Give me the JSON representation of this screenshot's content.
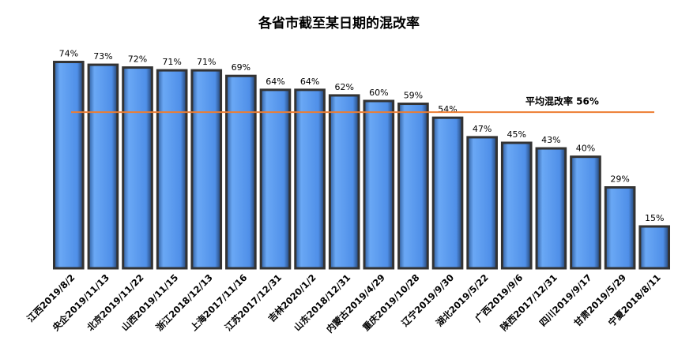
{
  "chart_data": {
    "type": "bar",
    "title": "各省市截至某日期的混改率",
    "categories": [
      "江西2019/8/2",
      "央企2019/11/13",
      "北京2019/11/22",
      "山西2019/11/15",
      "浙江2018/12/13",
      "上海2017/11/16",
      "江苏2017/12/31",
      "吉林2020/1/2",
      "山东2018/12/31",
      "内蒙古2019/4/29",
      "重庆2019/10/28",
      "辽宁2019/9/30",
      "湖北2019/5/22",
      "广西2019/9/6",
      "陕西2017/12/31",
      "四川2019/9/17",
      "甘肃2019/5/29",
      "宁夏2018/8/11"
    ],
    "values": [
      74,
      73,
      72,
      71,
      71,
      69,
      64,
      64,
      62,
      60,
      59,
      54,
      47,
      45,
      43,
      40,
      29,
      15
    ],
    "value_labels": [
      "74%",
      "73%",
      "72%",
      "71%",
      "71%",
      "69%",
      "64%",
      "64%",
      "62%",
      "60%",
      "59%",
      "54%",
      "47%",
      "45%",
      "43%",
      "40%",
      "29%",
      "15%"
    ],
    "color": "#4f8fe8",
    "average": {
      "value": 56,
      "label": "平均混改率 56%",
      "color": "#ed7d31"
    },
    "ylim": [
      0,
      75
    ]
  }
}
